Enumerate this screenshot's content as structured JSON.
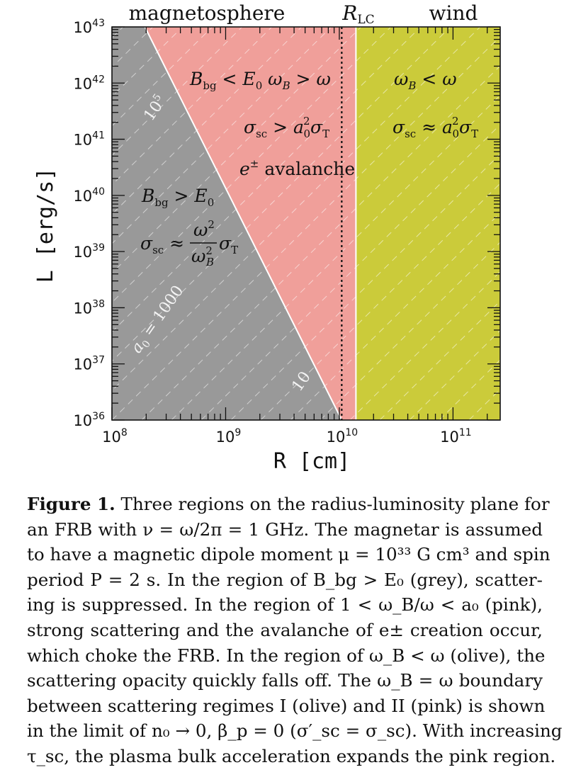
{
  "chart_data": {
    "type": "area",
    "x_scale": "log",
    "y_scale": "log",
    "xlim": [
      100000000.0,
      260000000000.0
    ],
    "ylim": [
      1e+36,
      1e+43
    ],
    "xlabel": "R [cm]",
    "ylabel": "L [erg/s]",
    "x_ticks": [
      {
        "value": 100000000.0,
        "exp": "8"
      },
      {
        "value": 1000000000.0,
        "exp": "9"
      },
      {
        "value": 10000000000.0,
        "exp": "10"
      },
      {
        "value": 100000000000.0,
        "exp": "11"
      }
    ],
    "y_ticks": [
      {
        "value": 1e+36,
        "exp": "36"
      },
      {
        "value": 1e+37,
        "exp": "37"
      },
      {
        "value": 1e+38,
        "exp": "38"
      },
      {
        "value": 1e+39,
        "exp": "39"
      },
      {
        "value": 1e+40,
        "exp": "40"
      },
      {
        "value": 1e+41,
        "exp": "41"
      },
      {
        "value": 1e+42,
        "exp": "42"
      },
      {
        "value": 1e+43,
        "exp": "43"
      }
    ],
    "tick_base": "10",
    "top_labels": {
      "magnetosphere": "magnetosphere",
      "rlc": "R",
      "rlc_sub": "LC",
      "wind": "wind"
    },
    "regions": [
      {
        "name": "grey",
        "color": "#999999"
      },
      {
        "name": "pink",
        "color": "#f09f9a"
      },
      {
        "name": "olive",
        "color": "#cbcb3a"
      }
    ],
    "boundary_line": {
      "points": [
        [
          195000000.0,
          1e+43
        ],
        [
          10500000000.0,
          1e+36
        ]
      ]
    },
    "light_cylinder": {
      "x": 10500000000.0
    },
    "wind_boundary": {
      "x": 14000000000.0
    },
    "a0_contours": [
      100000.0,
      1000,
      10
    ],
    "contour_slope_decades_per_decade": 2,
    "contour_labels": [
      {
        "text": "10",
        "sup": "5"
      },
      {
        "text": "a",
        "sub": "0",
        "rest": " = 1000"
      },
      {
        "text": "10"
      }
    ],
    "annotations": {
      "pink_1a": "B",
      "pink_1a_sub": "bg",
      "pink_1b": " < E",
      "pink_1b_sub": "0",
      "pink_1c": "  ω",
      "pink_1c_sub": "B",
      "pink_1d": " > ω",
      "pink_2a": "σ",
      "pink_2a_sub": "sc",
      "pink_2b": " > a",
      "pink_2b_sub": "0",
      "pink_2b_sup": "2",
      "pink_2c": "σ",
      "pink_2c_sub": "T",
      "pink_3a": "e",
      "pink_3a_sup": "±",
      "pink_3b": " avalanche",
      "olive_1a": "ω",
      "olive_1a_sub": "B",
      "olive_1b": " < ω",
      "olive_2a": "σ",
      "olive_2a_sub": "sc",
      "olive_2b": " ≈ a",
      "olive_2b_sub": "0",
      "olive_2b_sup": "2",
      "olive_2c": "σ",
      "olive_2c_sub": "T",
      "grey_1a": "B",
      "grey_1a_sub": "bg",
      "grey_1b": " > E",
      "grey_1b_sub": "0",
      "grey_2a": "σ",
      "grey_2a_sub": "sc",
      "grey_2b": " ≈",
      "grey_2num": "ω",
      "grey_2num_sup": "2",
      "grey_2den": "ω",
      "grey_2den_sup": "2",
      "grey_2den_sub": "B",
      "grey_2c": "σ",
      "grey_2c_sub": "T"
    }
  },
  "caption": {
    "label": "Figure 1.",
    "lines": [
      " Three regions on the radius-luminosity plane for",
      "an FRB with ν = ω/2π = 1 GHz. The magnetar is assumed",
      "to have a magnetic dipole moment μ = 10³³ G cm³ and spin",
      "period P = 2 s. In the region of B_bg > E₀ (grey), scatter-",
      "ing is suppressed. In the region of 1 < ω_B/ω < a₀ (pink),",
      "strong scattering and the avalanche of e± creation occur,",
      "which choke the FRB. In the region of ω_B < ω (olive), the",
      "scattering opacity quickly falls off. The ω_B = ω boundary",
      "between scattering regimes I (olive) and II (pink) is shown",
      "in the limit of n₀ → 0, β_p = 0 (σ′_sc = σ_sc). With increasing",
      "τ_sc, the plasma bulk acceleration expands the pink region."
    ]
  }
}
